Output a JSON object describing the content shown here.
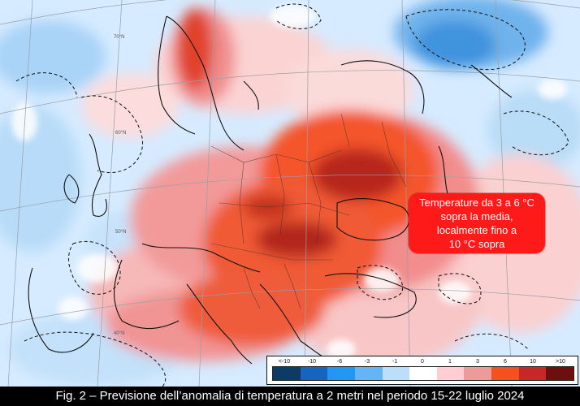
{
  "map": {
    "latitude_labels": [
      "70°N",
      "60°N",
      "50°N",
      "40°N"
    ]
  },
  "callout": {
    "lines": [
      "Temperature da 3 a 6 °C",
      "sopra la media,",
      "localmente fino a",
      "10 °C sopra"
    ],
    "color": "#ff1a1a"
  },
  "legend": {
    "ticks": [
      "<-10",
      "-10",
      "-6",
      "-3",
      "-1",
      "0",
      "1",
      "3",
      "6",
      "10",
      ">10"
    ],
    "colors": [
      "#0d3b66",
      "#1565c0",
      "#2196f3",
      "#64b5f6",
      "#bbdefb",
      "#ffffff",
      "#ffcdd2",
      "#ef9a9a",
      "#f4511e",
      "#c62828",
      "#6d0f0f"
    ]
  },
  "caption": "Fig. 2 – Previsione dell’anomalia di temperatura a 2 metri nel periodo 15-22 luglio 2024"
}
